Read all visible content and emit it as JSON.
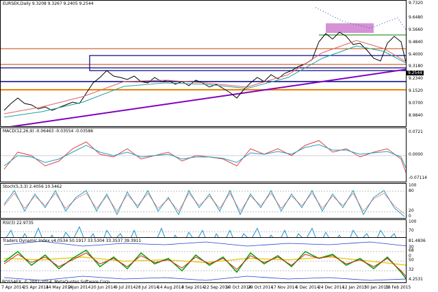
{
  "main": {
    "header": "EURSEK,Daily  9.3208 9.3267 9.2405 9.2544",
    "price_tag": "9.2544",
    "axis": [
      "9.7320",
      "9.6480",
      "9.5660",
      "9.4840",
      "9.4000",
      "9.3180",
      "9.2340",
      "9.1520",
      "9.0700",
      "8.9840"
    ]
  },
  "macd": {
    "header": "MACD(12,26,9) -0.06463 -0.03554 -0.03586",
    "axis": [
      "0.0721",
      "0.0000",
      "-0.07114"
    ]
  },
  "stoch": {
    "header": "Stoch(5,3,3) 2.4056 10.5462",
    "axis": [
      "100",
      "80",
      "20",
      "0"
    ]
  },
  "rsi": {
    "header": "RSI(3) 22.9735",
    "axis": [
      "100",
      "70",
      "30",
      "0"
    ]
  },
  "tdi": {
    "header": "Traders Dynamic Index v4.0534 50.1917 33.5304 33.3537 39.3911",
    "axis": [
      "81.4836",
      "68",
      "50",
      "32",
      "4.2531"
    ]
  },
  "watermark": "BOSSAFX, © 2001-2014, MetaQuotes Software Corp.",
  "xaxis": [
    "7 Apr 2014",
    "25 Apr 2014",
    "14 May 2014",
    "2 Jun 2014",
    "20 Jun 2014",
    "9 Jul 2014",
    "28 Jul 2014",
    "14 Aug 2014",
    "3 Sep 2014",
    "22 Sep 2014",
    "10 Oct 2014",
    "29 Oct 2014",
    "17 Nov 2014",
    "5 Dec 2014",
    "24 Dec 2014",
    "12 Jan 2015",
    "30 Jan 2015",
    "18 Feb 2015"
  ]
}
